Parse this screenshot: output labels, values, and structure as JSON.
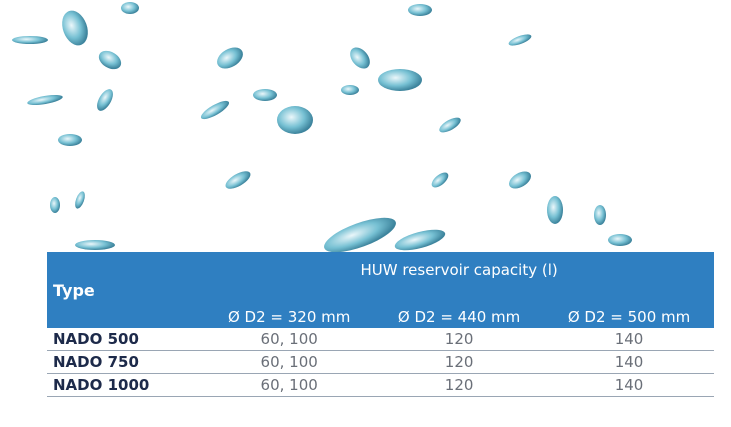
{
  "table": {
    "header": {
      "type": "Type",
      "group": "HUW reservoir capacity (l)",
      "columns": [
        "Ø D2 = 320 mm",
        "Ø D2 = 440 mm",
        "Ø D2 = 500 mm"
      ]
    },
    "rows": [
      [
        "NADO 500",
        "60, 100",
        "120",
        "140"
      ],
      [
        "NADO 750",
        "60, 100",
        "120",
        "140"
      ],
      [
        "NADO 1000",
        "60, 100",
        "120",
        "140"
      ]
    ]
  }
}
